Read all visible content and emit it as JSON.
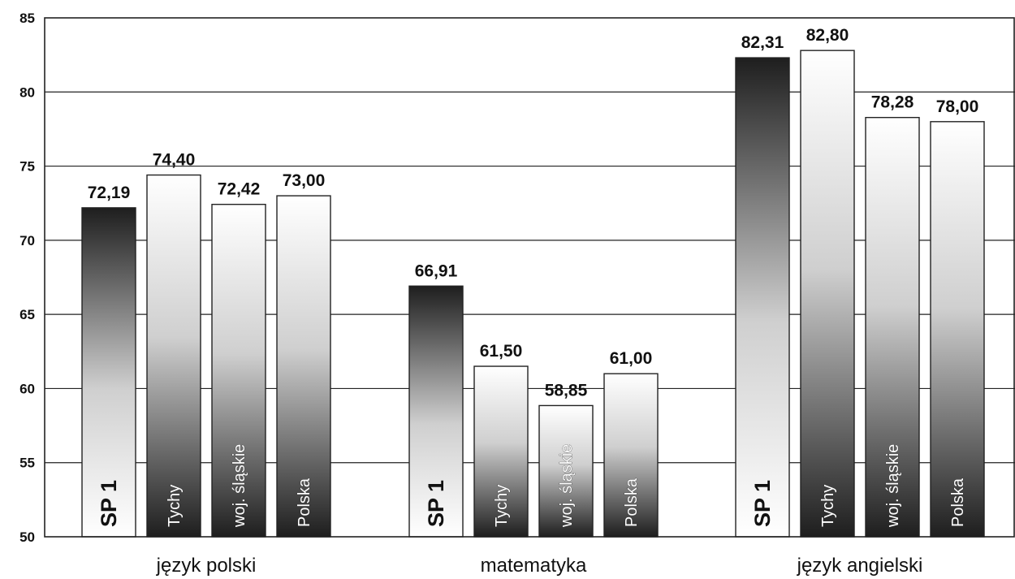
{
  "chart_data": {
    "type": "bar",
    "title": "",
    "xlabel": "",
    "ylabel": "",
    "ylim": [
      50,
      85
    ],
    "yticks": [
      50,
      55,
      60,
      65,
      70,
      75,
      80,
      85
    ],
    "grid": true,
    "legend": "none",
    "categories": [
      "język polski",
      "matematyka",
      "język angielski"
    ],
    "series": [
      {
        "name": "SP 1",
        "values": [
          72.19,
          66.91,
          82.31
        ],
        "value_labels": [
          "72,19",
          "66,91",
          "82,31"
        ]
      },
      {
        "name": "Tychy",
        "values": [
          74.4,
          61.5,
          82.8
        ],
        "value_labels": [
          "74,40",
          "61,50",
          "82,80"
        ]
      },
      {
        "name": "woj. śląskie",
        "values": [
          72.42,
          58.85,
          78.28
        ],
        "value_labels": [
          "72,42",
          "58,85",
          "78,28"
        ]
      },
      {
        "name": "Polska",
        "values": [
          73.0,
          61.0,
          78.0
        ],
        "value_labels": [
          "73,00",
          "61,00",
          "78,00"
        ]
      }
    ]
  },
  "colors": {
    "frame": "#222222",
    "bar_dark": "#1e1e1e",
    "bar_light": "#ffffff"
  }
}
